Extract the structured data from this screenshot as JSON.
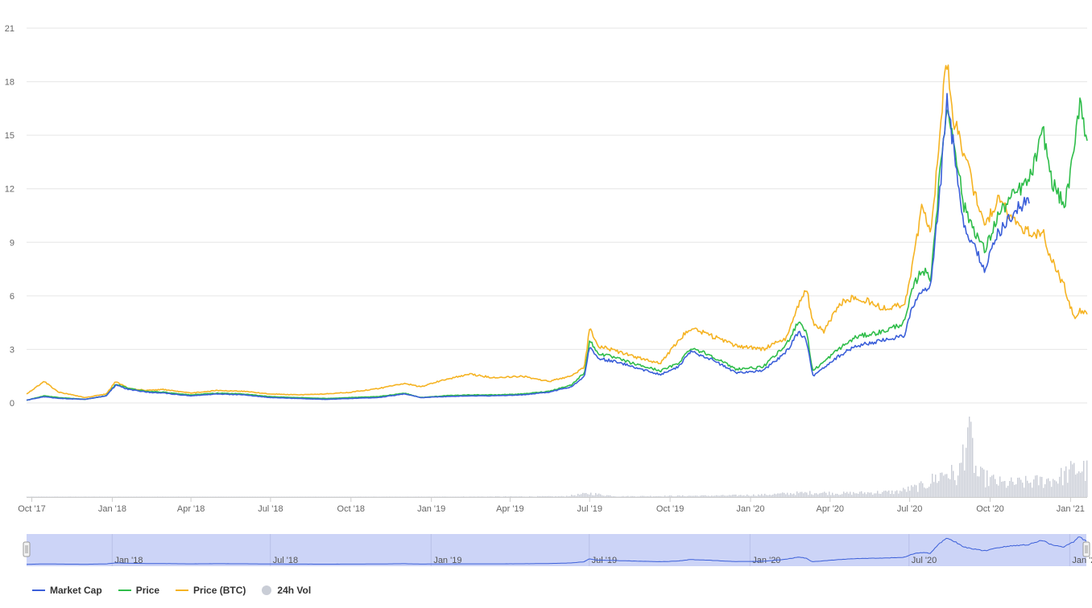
{
  "colors": {
    "market_cap": "#3b5fd9",
    "price": "#2fbd4a",
    "price_btc": "#f5b323",
    "volume": "#c9cdd6",
    "navigator_fill": "#ccd4f7",
    "navigator_line": "#3b5fd9"
  },
  "chart_data": {
    "type": "line",
    "title": "",
    "xlabel": "",
    "ylabel": "",
    "ylim": [
      0,
      21
    ],
    "y_ticks": [
      "0",
      "3",
      "6",
      "9",
      "12",
      "15",
      "18",
      "21"
    ],
    "x_ticks": [
      "Oct '17",
      "Jan '18",
      "Apr '18",
      "Jul '18",
      "Oct '18",
      "Jan '19",
      "Apr '19",
      "Jul '19",
      "Oct '19",
      "Jan '20",
      "Apr '20",
      "Jul '20",
      "Oct '20",
      "Jan '21"
    ],
    "x_range": [
      "2017-09-25",
      "2021-01-20"
    ],
    "grid": true,
    "legend_position": "bottom-left",
    "series": [
      {
        "name": "Market Cap",
        "key": "market_cap",
        "points": [
          [
            "2017-09-25",
            0.15
          ],
          [
            "2017-10-15",
            0.35
          ],
          [
            "2017-11-01",
            0.25
          ],
          [
            "2017-12-01",
            0.2
          ],
          [
            "2017-12-25",
            0.4
          ],
          [
            "2018-01-05",
            1.0
          ],
          [
            "2018-01-20",
            0.75
          ],
          [
            "2018-02-10",
            0.6
          ],
          [
            "2018-03-01",
            0.55
          ],
          [
            "2018-04-01",
            0.4
          ],
          [
            "2018-05-01",
            0.5
          ],
          [
            "2018-06-01",
            0.45
          ],
          [
            "2018-07-01",
            0.3
          ],
          [
            "2018-08-01",
            0.25
          ],
          [
            "2018-09-01",
            0.2
          ],
          [
            "2018-10-01",
            0.25
          ],
          [
            "2018-11-01",
            0.3
          ],
          [
            "2018-12-01",
            0.5
          ],
          [
            "2018-12-20",
            0.3
          ],
          [
            "2019-01-15",
            0.35
          ],
          [
            "2019-02-15",
            0.4
          ],
          [
            "2019-03-15",
            0.4
          ],
          [
            "2019-04-15",
            0.45
          ],
          [
            "2019-05-15",
            0.6
          ],
          [
            "2019-06-10",
            0.9
          ],
          [
            "2019-06-25",
            1.5
          ],
          [
            "2019-07-01",
            3.2
          ],
          [
            "2019-07-10",
            2.5
          ],
          [
            "2019-08-01",
            2.3
          ],
          [
            "2019-08-20",
            2.0
          ],
          [
            "2019-09-20",
            1.6
          ],
          [
            "2019-10-10",
            2.0
          ],
          [
            "2019-10-25",
            2.9
          ],
          [
            "2019-11-15",
            2.5
          ],
          [
            "2019-12-15",
            1.7
          ],
          [
            "2020-01-15",
            1.8
          ],
          [
            "2020-02-10",
            2.8
          ],
          [
            "2020-02-25",
            4.0
          ],
          [
            "2020-03-05",
            3.5
          ],
          [
            "2020-03-12",
            1.5
          ],
          [
            "2020-03-25",
            2.0
          ],
          [
            "2020-04-10",
            2.6
          ],
          [
            "2020-05-01",
            3.2
          ],
          [
            "2020-06-01",
            3.5
          ],
          [
            "2020-06-25",
            3.8
          ],
          [
            "2020-07-05",
            5.5
          ],
          [
            "2020-07-15",
            6.2
          ],
          [
            "2020-07-25",
            6.5
          ],
          [
            "2020-08-05",
            12.0
          ],
          [
            "2020-08-12",
            17.0
          ],
          [
            "2020-08-20",
            14.5
          ],
          [
            "2020-09-01",
            10.0
          ],
          [
            "2020-09-15",
            8.5
          ],
          [
            "2020-09-25",
            7.5
          ],
          [
            "2020-10-10",
            9.5
          ],
          [
            "2020-10-25",
            10.5
          ],
          [
            "2020-11-15",
            11.5
          ]
        ]
      },
      {
        "name": "Price",
        "key": "price",
        "points": [
          [
            "2017-09-25",
            0.15
          ],
          [
            "2017-10-15",
            0.4
          ],
          [
            "2017-11-01",
            0.3
          ],
          [
            "2017-12-01",
            0.2
          ],
          [
            "2017-12-25",
            0.4
          ],
          [
            "2018-01-05",
            1.05
          ],
          [
            "2018-01-20",
            0.8
          ],
          [
            "2018-02-10",
            0.65
          ],
          [
            "2018-03-01",
            0.6
          ],
          [
            "2018-04-01",
            0.45
          ],
          [
            "2018-05-01",
            0.55
          ],
          [
            "2018-06-01",
            0.5
          ],
          [
            "2018-07-01",
            0.35
          ],
          [
            "2018-08-01",
            0.3
          ],
          [
            "2018-09-01",
            0.25
          ],
          [
            "2018-10-01",
            0.3
          ],
          [
            "2018-11-01",
            0.35
          ],
          [
            "2018-12-01",
            0.55
          ],
          [
            "2018-12-20",
            0.3
          ],
          [
            "2019-01-15",
            0.4
          ],
          [
            "2019-02-15",
            0.45
          ],
          [
            "2019-03-15",
            0.45
          ],
          [
            "2019-04-15",
            0.5
          ],
          [
            "2019-05-15",
            0.65
          ],
          [
            "2019-06-10",
            1.0
          ],
          [
            "2019-06-25",
            1.7
          ],
          [
            "2019-07-01",
            3.5
          ],
          [
            "2019-07-10",
            2.8
          ],
          [
            "2019-08-01",
            2.5
          ],
          [
            "2019-08-20",
            2.2
          ],
          [
            "2019-09-20",
            1.8
          ],
          [
            "2019-10-10",
            2.2
          ],
          [
            "2019-10-25",
            3.1
          ],
          [
            "2019-11-15",
            2.7
          ],
          [
            "2019-12-15",
            1.9
          ],
          [
            "2020-01-15",
            2.0
          ],
          [
            "2020-02-10",
            3.2
          ],
          [
            "2020-02-25",
            4.6
          ],
          [
            "2020-03-05",
            4.0
          ],
          [
            "2020-03-12",
            1.8
          ],
          [
            "2020-03-25",
            2.3
          ],
          [
            "2020-04-10",
            3.0
          ],
          [
            "2020-05-01",
            3.7
          ],
          [
            "2020-06-01",
            4.0
          ],
          [
            "2020-06-25",
            4.5
          ],
          [
            "2020-07-05",
            6.5
          ],
          [
            "2020-07-15",
            7.5
          ],
          [
            "2020-07-25",
            7.0
          ],
          [
            "2020-08-05",
            13.0
          ],
          [
            "2020-08-12",
            16.5
          ],
          [
            "2020-08-20",
            15.0
          ],
          [
            "2020-09-01",
            11.0
          ],
          [
            "2020-09-15",
            9.5
          ],
          [
            "2020-09-25",
            8.5
          ],
          [
            "2020-10-10",
            10.5
          ],
          [
            "2020-10-25",
            11.5
          ],
          [
            "2020-11-15",
            12.5
          ],
          [
            "2020-12-01",
            15.2
          ],
          [
            "2020-12-10",
            12.5
          ],
          [
            "2020-12-25",
            11.0
          ],
          [
            "2021-01-05",
            14.0
          ],
          [
            "2021-01-12",
            17.2
          ],
          [
            "2021-01-20",
            14.5
          ]
        ]
      },
      {
        "name": "Price (BTC)",
        "key": "price_btc",
        "points": [
          [
            "2017-09-25",
            0.5
          ],
          [
            "2017-10-15",
            1.2
          ],
          [
            "2017-11-01",
            0.6
          ],
          [
            "2017-12-01",
            0.3
          ],
          [
            "2017-12-25",
            0.5
          ],
          [
            "2018-01-05",
            1.2
          ],
          [
            "2018-01-20",
            0.8
          ],
          [
            "2018-02-10",
            0.7
          ],
          [
            "2018-03-01",
            0.75
          ],
          [
            "2018-04-01",
            0.55
          ],
          [
            "2018-05-01",
            0.7
          ],
          [
            "2018-06-01",
            0.65
          ],
          [
            "2018-07-01",
            0.5
          ],
          [
            "2018-08-01",
            0.45
          ],
          [
            "2018-09-01",
            0.5
          ],
          [
            "2018-10-01",
            0.6
          ],
          [
            "2018-11-01",
            0.8
          ],
          [
            "2018-12-01",
            1.1
          ],
          [
            "2018-12-20",
            0.9
          ],
          [
            "2019-01-15",
            1.3
          ],
          [
            "2019-02-15",
            1.6
          ],
          [
            "2019-03-15",
            1.4
          ],
          [
            "2019-04-15",
            1.5
          ],
          [
            "2019-05-15",
            1.2
          ],
          [
            "2019-06-10",
            1.5
          ],
          [
            "2019-06-25",
            2.0
          ],
          [
            "2019-07-01",
            4.2
          ],
          [
            "2019-07-10",
            3.2
          ],
          [
            "2019-08-01",
            2.9
          ],
          [
            "2019-08-20",
            2.6
          ],
          [
            "2019-09-20",
            2.2
          ],
          [
            "2019-10-10",
            3.5
          ],
          [
            "2019-10-25",
            4.2
          ],
          [
            "2019-11-15",
            3.8
          ],
          [
            "2019-12-15",
            3.2
          ],
          [
            "2020-01-15",
            3.0
          ],
          [
            "2020-02-10",
            3.6
          ],
          [
            "2020-02-25",
            5.5
          ],
          [
            "2020-03-05",
            6.4
          ],
          [
            "2020-03-12",
            4.5
          ],
          [
            "2020-03-25",
            4.0
          ],
          [
            "2020-04-10",
            5.5
          ],
          [
            "2020-05-01",
            6.0
          ],
          [
            "2020-06-01",
            5.3
          ],
          [
            "2020-06-25",
            5.5
          ],
          [
            "2020-07-05",
            8.0
          ],
          [
            "2020-07-15",
            11.0
          ],
          [
            "2020-07-25",
            9.5
          ],
          [
            "2020-08-05",
            15.0
          ],
          [
            "2020-08-12",
            19.5
          ],
          [
            "2020-08-20",
            16.0
          ],
          [
            "2020-09-01",
            14.0
          ],
          [
            "2020-09-15",
            11.5
          ],
          [
            "2020-09-25",
            10.0
          ],
          [
            "2020-10-10",
            11.5
          ],
          [
            "2020-10-25",
            10.5
          ],
          [
            "2020-11-15",
            9.5
          ],
          [
            "2020-12-01",
            9.5
          ],
          [
            "2020-12-10",
            8.0
          ],
          [
            "2020-12-25",
            6.5
          ],
          [
            "2021-01-05",
            4.8
          ],
          [
            "2021-01-12",
            5.2
          ],
          [
            "2021-01-20",
            5.0
          ]
        ]
      },
      {
        "name": "24h Vol",
        "key": "volume",
        "relative": true,
        "points": [
          [
            "2017-09-25",
            0.005
          ],
          [
            "2018-01-01",
            0.005
          ],
          [
            "2018-07-01",
            0.004
          ],
          [
            "2019-01-01",
            0.005
          ],
          [
            "2019-06-01",
            0.01
          ],
          [
            "2019-07-01",
            0.05
          ],
          [
            "2019-07-15",
            0.03
          ],
          [
            "2019-08-01",
            0.01
          ],
          [
            "2019-10-01",
            0.015
          ],
          [
            "2019-12-01",
            0.02
          ],
          [
            "2020-01-15",
            0.03
          ],
          [
            "2020-02-15",
            0.05
          ],
          [
            "2020-03-15",
            0.06
          ],
          [
            "2020-04-15",
            0.05
          ],
          [
            "2020-06-15",
            0.07
          ],
          [
            "2020-07-15",
            0.15
          ],
          [
            "2020-08-12",
            0.35
          ],
          [
            "2020-08-25",
            0.25
          ],
          [
            "2020-09-05",
            0.98
          ],
          [
            "2020-09-15",
            0.3
          ],
          [
            "2020-10-15",
            0.18
          ],
          [
            "2020-11-15",
            0.2
          ],
          [
            "2020-12-15",
            0.25
          ],
          [
            "2021-01-10",
            0.4
          ],
          [
            "2021-01-20",
            0.35
          ]
        ]
      }
    ],
    "navigator": {
      "x_ticks": [
        "Jan '18",
        "Jul '18",
        "Jan '19",
        "Jul '19",
        "Jan '20",
        "Jul '20",
        "Jan '21"
      ]
    }
  },
  "legend": [
    {
      "label": "Market Cap",
      "key": "market_cap",
      "shape": "line"
    },
    {
      "label": "Price",
      "key": "price",
      "shape": "line"
    },
    {
      "label": "Price (BTC)",
      "key": "price_btc",
      "shape": "line"
    },
    {
      "label": "24h Vol",
      "key": "volume",
      "shape": "dot"
    }
  ]
}
